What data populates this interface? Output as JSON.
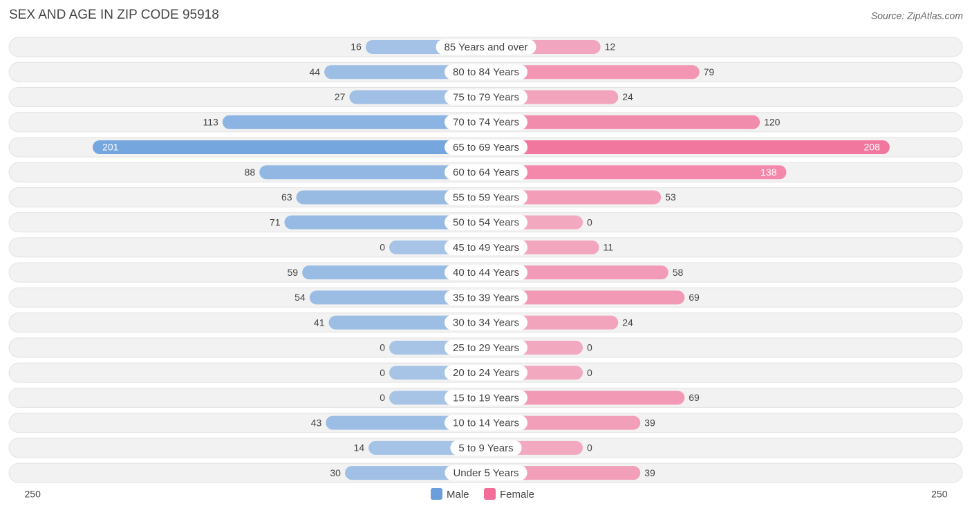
{
  "chart_data": {
    "type": "diverging-bar",
    "title": "SEX AND AGE IN ZIP CODE 95918",
    "source": "Source: ZipAtlas.com",
    "categories": [
      "85 Years and over",
      "80 to 84 Years",
      "75 to 79 Years",
      "70 to 74 Years",
      "65 to 69 Years",
      "60 to 64 Years",
      "55 to 59 Years",
      "50 to 54 Years",
      "45 to 49 Years",
      "40 to 44 Years",
      "35 to 39 Years",
      "30 to 34 Years",
      "25 to 29 Years",
      "20 to 24 Years",
      "15 to 19 Years",
      "10 to 14 Years",
      "5 to 9 Years",
      "Under 5 Years"
    ],
    "series": [
      {
        "name": "Male",
        "color": "#6a9fdc",
        "values": [
          16,
          44,
          27,
          113,
          201,
          88,
          63,
          71,
          0,
          59,
          54,
          41,
          0,
          0,
          0,
          43,
          14,
          30
        ]
      },
      {
        "name": "Female",
        "color": "#f26d98",
        "values": [
          12,
          79,
          24,
          120,
          208,
          138,
          53,
          0,
          11,
          58,
          69,
          24,
          0,
          0,
          69,
          39,
          0,
          39
        ]
      }
    ],
    "xlim": [
      0,
      250
    ],
    "xticks": [
      250
    ],
    "legend": "bottom"
  }
}
